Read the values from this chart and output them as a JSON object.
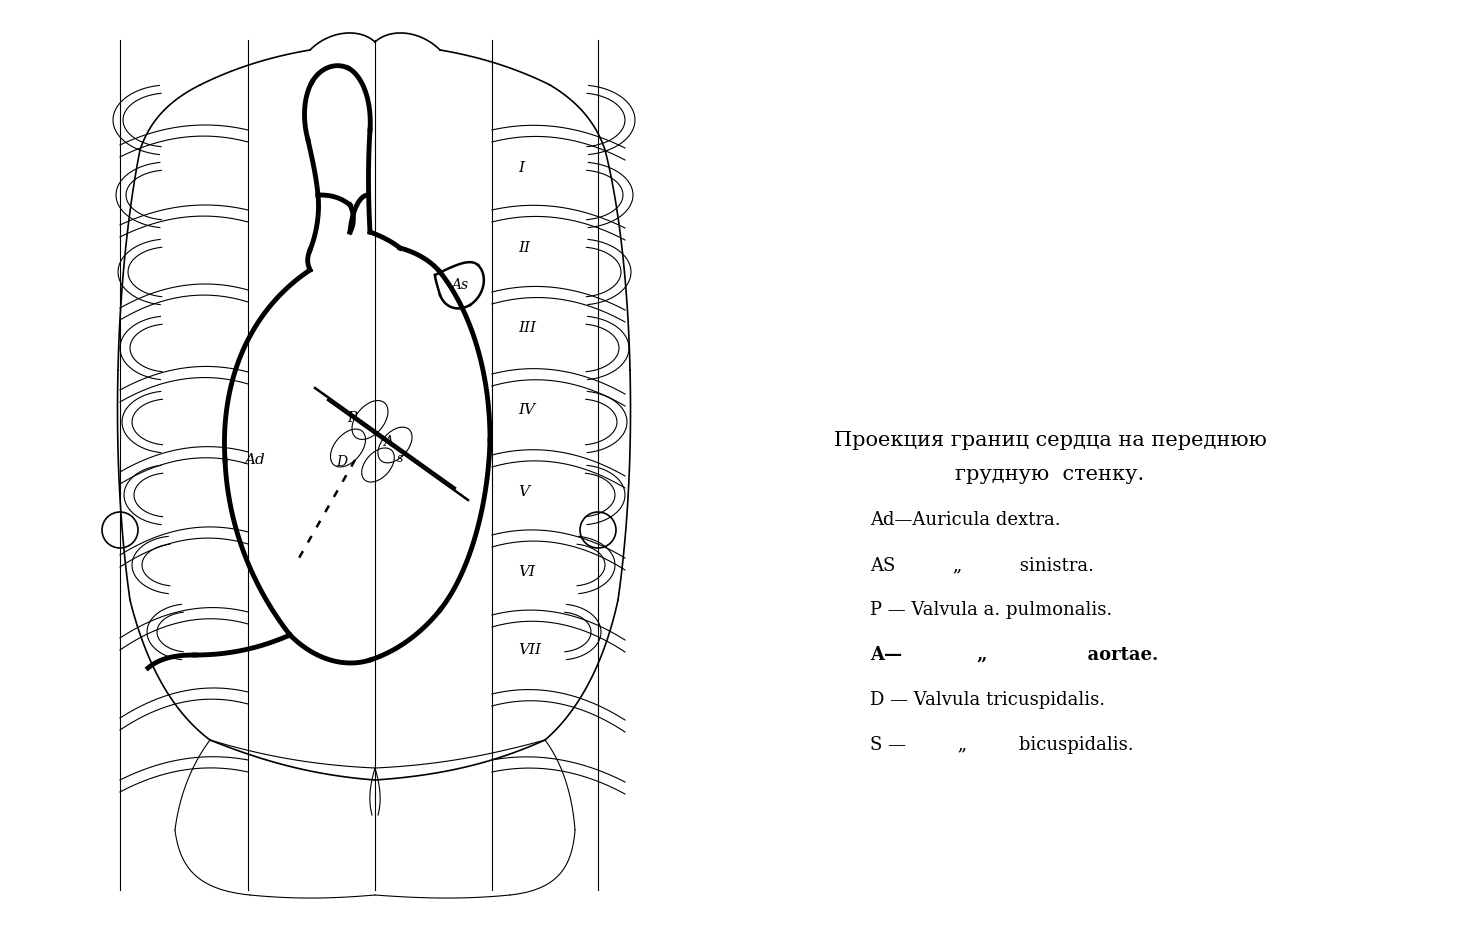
{
  "bg_color": "#ffffff",
  "line_color": "#000000",
  "figsize": [
    14.66,
    9.34
  ],
  "dpi": 100,
  "title_line1": "Проекция границ сердца на переднюю",
  "title_line2": "грудную  стенку.",
  "legend": [
    "Ad—Auricula dextra.",
    "AS          „          sinistra.",
    "P — Valvula a. pulmonalis.",
    "A—            „                aortae.",
    "D — Valvula tricuspidalis.",
    "S —         „         bicuspidalis."
  ]
}
